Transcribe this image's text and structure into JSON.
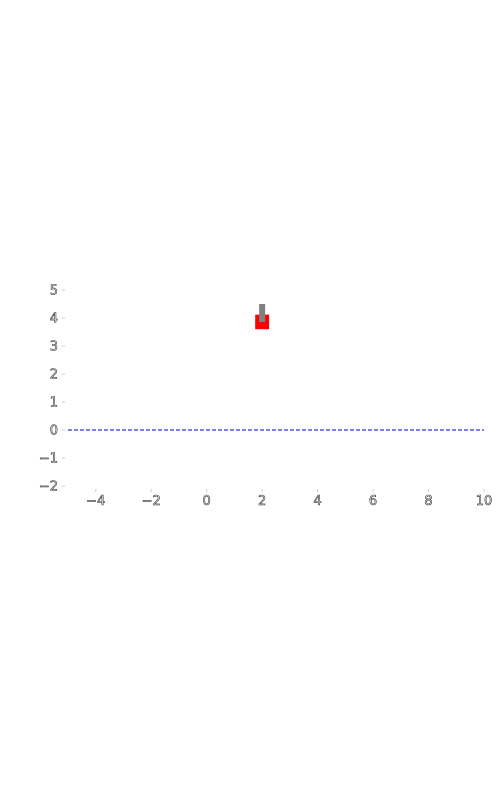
{
  "chart_data": {
    "type": "bar",
    "title": "",
    "xlabel": "",
    "ylabel": "",
    "xlim": [
      -5,
      10
    ],
    "ylim": [
      -2,
      5
    ],
    "x_ticks": [
      "−4",
      "−2",
      "0",
      "2",
      "4",
      "6",
      "8",
      "10"
    ],
    "x_tick_values": [
      -4,
      -2,
      0,
      2,
      4,
      6,
      8,
      10
    ],
    "y_ticks": [
      "5",
      "4",
      "3",
      "2",
      "1",
      "0",
      "−1",
      "−2"
    ],
    "y_tick_values": [
      5,
      4,
      3,
      2,
      1,
      0,
      -1,
      -2
    ],
    "grid": false,
    "bars": [
      {
        "x": 2,
        "value": 4,
        "bottom": 3.6,
        "width": 0.5,
        "color": "#ff0000",
        "error": 0.5,
        "error_color": "#808080"
      }
    ],
    "reference_line": {
      "y": 0,
      "style": "dashed",
      "color": "#0000cc"
    }
  }
}
